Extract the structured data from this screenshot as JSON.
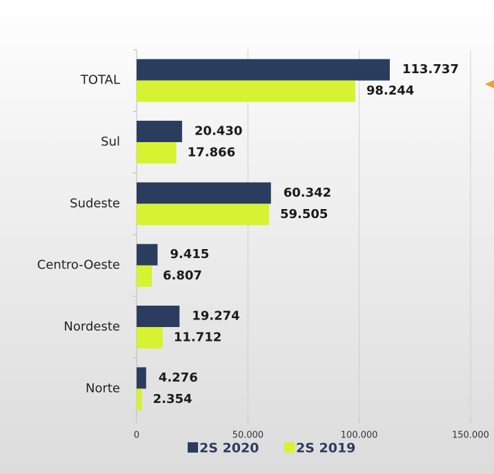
{
  "chart_data": {
    "type": "hbar",
    "categories": [
      "TOTAL",
      "Sul",
      "Sudeste",
      "Centro-Oeste",
      "Nordeste",
      "Norte"
    ],
    "series": [
      {
        "name": "2S 2020",
        "color": "#2b3d5e",
        "values": [
          113737,
          20430,
          60342,
          9415,
          19274,
          4276
        ],
        "value_labels": [
          "113.737",
          "20.430",
          "60.342",
          "9.415",
          "19.274",
          "4.276"
        ]
      },
      {
        "name": "2S 2019",
        "color": "#d6f230",
        "values": [
          98244,
          17866,
          59505,
          6807,
          11712,
          2354
        ],
        "value_labels": [
          "98.244",
          "17.866",
          "59.505",
          "6.807",
          "11.712",
          "2.354"
        ]
      }
    ],
    "xlim": [
      0,
      150000
    ],
    "xticks": [
      0,
      {
        "value": 50000,
        "label": "50.000"
      },
      {
        "value": 100000,
        "label": "100.000"
      },
      {
        "value": 150000,
        "label": "150.000"
      }
    ],
    "grid": true
  }
}
